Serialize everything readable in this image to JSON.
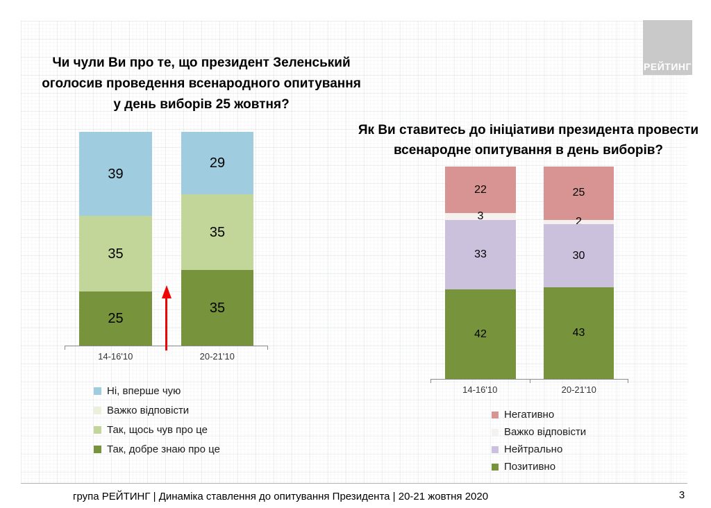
{
  "slide": {
    "logo_text": "РЕЙТИНГ",
    "footer_text": "група РЕЙТИНГ |  Динаміка ставлення до опитування Президента | 20-21 жовтня 2020",
    "page_number": "3"
  },
  "chart_data": [
    {
      "id": "awareness-chart",
      "type": "bar",
      "stacked": true,
      "title": "Чи чули Ви про те, що президент Зеленський оголосив проведення  всенародного опитування у день виборів 25 жовтня?",
      "categories": [
        "14-16'10",
        "20-21'10"
      ],
      "series": [
        {
          "name": "Ні, вперше чую",
          "color": "#9fccdf",
          "values": [
            39,
            29
          ]
        },
        {
          "name": "Так, щось чув про це",
          "color": "#c2d69a",
          "values": [
            35,
            35
          ]
        },
        {
          "name": "Так, добре знаю про це",
          "color": "#77933c",
          "values": [
            25,
            35
          ]
        }
      ],
      "legend": [
        {
          "label": "Ні, вперше чую",
          "color": "#9fccdf"
        },
        {
          "label": "Важко відповісти",
          "color": "#eaf0db"
        },
        {
          "label": "Так, щось чув про це",
          "color": "#c2d69a"
        },
        {
          "label": "Так, добре знаю про це",
          "color": "#77933c"
        }
      ],
      "legend_position": "bottom-left",
      "ylim": [
        0,
        100
      ],
      "grid": false,
      "annotation": "red upward arrow between the two bars"
    },
    {
      "id": "attitude-chart",
      "type": "bar",
      "stacked": true,
      "title": "Як Ви ставитесь до ініціативи президента провести всенародне опитування в день виборів?",
      "categories": [
        "14-16'10",
        "20-21'10"
      ],
      "series": [
        {
          "name": "Негативно",
          "color": "#d79492",
          "values": [
            22,
            25
          ]
        },
        {
          "name": "Важко відповісти",
          "color": "#f4f1ee",
          "values": [
            3,
            2
          ]
        },
        {
          "name": "Нейтрально",
          "color": "#cbc1dc",
          "values": [
            33,
            30
          ]
        },
        {
          "name": "Позитивно",
          "color": "#77933c",
          "values": [
            42,
            43
          ]
        }
      ],
      "legend": [
        {
          "label": "Негативно",
          "color": "#d79492"
        },
        {
          "label": "Важко відповісти",
          "color": "#f4f1ee"
        },
        {
          "label": "Нейтрально",
          "color": "#cbc1dc"
        },
        {
          "label": "Позитивно",
          "color": "#77933c"
        }
      ],
      "legend_position": "bottom-left",
      "ylim": [
        0,
        100
      ],
      "grid": false
    }
  ]
}
